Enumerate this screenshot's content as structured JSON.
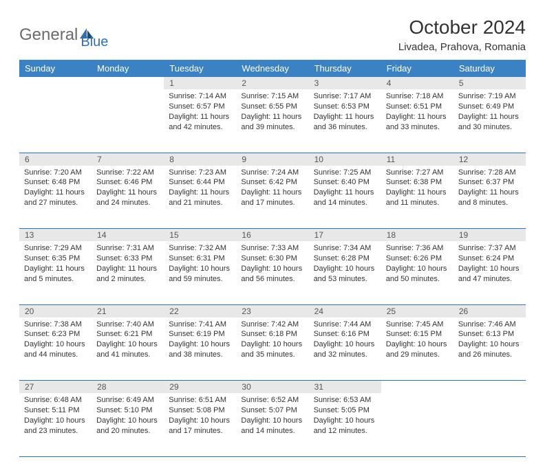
{
  "logo": {
    "part1": "General",
    "part2": "Blue"
  },
  "title": "October 2024",
  "location": "Livadea, Prahova, Romania",
  "weekdays": [
    "Sunday",
    "Monday",
    "Tuesday",
    "Wednesday",
    "Thursday",
    "Friday",
    "Saturday"
  ],
  "colors": {
    "header_bg": "#3b82c4",
    "header_fg": "#ffffff",
    "daynum_bg": "#e8e8e8",
    "daynum_fg": "#555555",
    "rule": "#2f71b8",
    "body_text": "#333333",
    "logo_gray": "#6b6b6b",
    "logo_blue": "#2f71b8"
  },
  "weeks": [
    [
      null,
      null,
      {
        "n": "1",
        "sr": "7:14 AM",
        "ss": "6:57 PM",
        "dl": "11 hours and 42 minutes."
      },
      {
        "n": "2",
        "sr": "7:15 AM",
        "ss": "6:55 PM",
        "dl": "11 hours and 39 minutes."
      },
      {
        "n": "3",
        "sr": "7:17 AM",
        "ss": "6:53 PM",
        "dl": "11 hours and 36 minutes."
      },
      {
        "n": "4",
        "sr": "7:18 AM",
        "ss": "6:51 PM",
        "dl": "11 hours and 33 minutes."
      },
      {
        "n": "5",
        "sr": "7:19 AM",
        "ss": "6:49 PM",
        "dl": "11 hours and 30 minutes."
      }
    ],
    [
      {
        "n": "6",
        "sr": "7:20 AM",
        "ss": "6:48 PM",
        "dl": "11 hours and 27 minutes."
      },
      {
        "n": "7",
        "sr": "7:22 AM",
        "ss": "6:46 PM",
        "dl": "11 hours and 24 minutes."
      },
      {
        "n": "8",
        "sr": "7:23 AM",
        "ss": "6:44 PM",
        "dl": "11 hours and 21 minutes."
      },
      {
        "n": "9",
        "sr": "7:24 AM",
        "ss": "6:42 PM",
        "dl": "11 hours and 17 minutes."
      },
      {
        "n": "10",
        "sr": "7:25 AM",
        "ss": "6:40 PM",
        "dl": "11 hours and 14 minutes."
      },
      {
        "n": "11",
        "sr": "7:27 AM",
        "ss": "6:38 PM",
        "dl": "11 hours and 11 minutes."
      },
      {
        "n": "12",
        "sr": "7:28 AM",
        "ss": "6:37 PM",
        "dl": "11 hours and 8 minutes."
      }
    ],
    [
      {
        "n": "13",
        "sr": "7:29 AM",
        "ss": "6:35 PM",
        "dl": "11 hours and 5 minutes."
      },
      {
        "n": "14",
        "sr": "7:31 AM",
        "ss": "6:33 PM",
        "dl": "11 hours and 2 minutes."
      },
      {
        "n": "15",
        "sr": "7:32 AM",
        "ss": "6:31 PM",
        "dl": "10 hours and 59 minutes."
      },
      {
        "n": "16",
        "sr": "7:33 AM",
        "ss": "6:30 PM",
        "dl": "10 hours and 56 minutes."
      },
      {
        "n": "17",
        "sr": "7:34 AM",
        "ss": "6:28 PM",
        "dl": "10 hours and 53 minutes."
      },
      {
        "n": "18",
        "sr": "7:36 AM",
        "ss": "6:26 PM",
        "dl": "10 hours and 50 minutes."
      },
      {
        "n": "19",
        "sr": "7:37 AM",
        "ss": "6:24 PM",
        "dl": "10 hours and 47 minutes."
      }
    ],
    [
      {
        "n": "20",
        "sr": "7:38 AM",
        "ss": "6:23 PM",
        "dl": "10 hours and 44 minutes."
      },
      {
        "n": "21",
        "sr": "7:40 AM",
        "ss": "6:21 PM",
        "dl": "10 hours and 41 minutes."
      },
      {
        "n": "22",
        "sr": "7:41 AM",
        "ss": "6:19 PM",
        "dl": "10 hours and 38 minutes."
      },
      {
        "n": "23",
        "sr": "7:42 AM",
        "ss": "6:18 PM",
        "dl": "10 hours and 35 minutes."
      },
      {
        "n": "24",
        "sr": "7:44 AM",
        "ss": "6:16 PM",
        "dl": "10 hours and 32 minutes."
      },
      {
        "n": "25",
        "sr": "7:45 AM",
        "ss": "6:15 PM",
        "dl": "10 hours and 29 minutes."
      },
      {
        "n": "26",
        "sr": "7:46 AM",
        "ss": "6:13 PM",
        "dl": "10 hours and 26 minutes."
      }
    ],
    [
      {
        "n": "27",
        "sr": "6:48 AM",
        "ss": "5:11 PM",
        "dl": "10 hours and 23 minutes."
      },
      {
        "n": "28",
        "sr": "6:49 AM",
        "ss": "5:10 PM",
        "dl": "10 hours and 20 minutes."
      },
      {
        "n": "29",
        "sr": "6:51 AM",
        "ss": "5:08 PM",
        "dl": "10 hours and 17 minutes."
      },
      {
        "n": "30",
        "sr": "6:52 AM",
        "ss": "5:07 PM",
        "dl": "10 hours and 14 minutes."
      },
      {
        "n": "31",
        "sr": "6:53 AM",
        "ss": "5:05 PM",
        "dl": "10 hours and 12 minutes."
      },
      null,
      null
    ]
  ],
  "labels": {
    "sunrise": "Sunrise:",
    "sunset": "Sunset:",
    "daylight": "Daylight:"
  }
}
